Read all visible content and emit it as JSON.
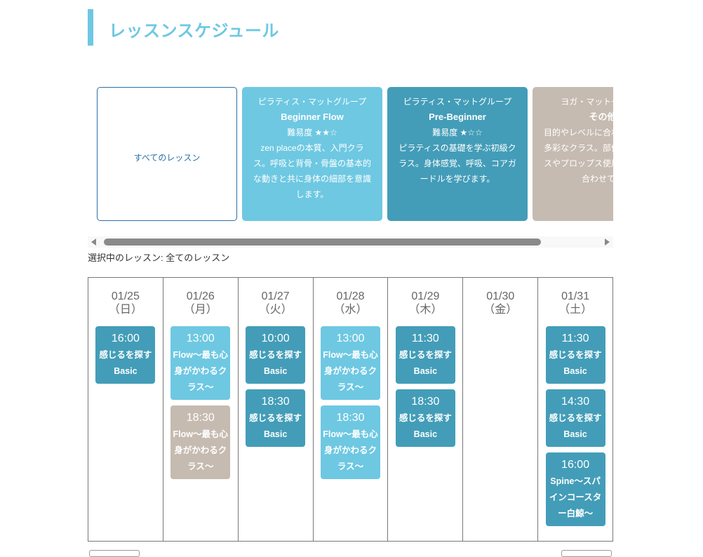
{
  "header": {
    "title": "レッスンスケジュール"
  },
  "colors": {
    "light_blue": "#6ec8e2",
    "teal": "#439db8",
    "beige": "#c6bbb1",
    "accent": "#6ec8e2"
  },
  "lesson_cards": [
    {
      "kind": "all",
      "label": "すべてのレッスン"
    },
    {
      "kind": "light_blue",
      "group": "ピラティス・マットグループ",
      "name": "Beginner Flow",
      "difficulty": "難易度 ★★☆",
      "desc": "zen placeの本質、入門クラス。呼吸と背骨・骨盤の基本的な動きと共に身体の細部を意識します。"
    },
    {
      "kind": "teal",
      "group": "ピラティス・マットグループ",
      "name": "Pre-Beginner",
      "difficulty": "難易度 ★☆☆",
      "desc": "ピラティスの基礎を学ぶ初級クラス。身体感覚、呼吸、コアガードルを学びます。"
    },
    {
      "kind": "beige",
      "group": "ヨガ・マットグループ",
      "name": "その他",
      "difficulty": "",
      "desc": "目的やレベルに合わせて選べる多彩なクラス。部位にフォーカスやプロップス使用など興味に合わせて楽"
    }
  ],
  "selected": {
    "text": "選択中のレッスン: 全てのレッスン"
  },
  "schedule": [
    {
      "date": "01/25",
      "dow": "（日）",
      "events": [
        {
          "time": "16:00",
          "name": "感じるを探すBasic",
          "kind": "teal"
        }
      ]
    },
    {
      "date": "01/26",
      "dow": "（月）",
      "events": [
        {
          "time": "13:00",
          "name": "Flow～最も心身がかわるクラス～",
          "kind": "light_blue"
        },
        {
          "time": "18:30",
          "name": "Flow～最も心身がかわるクラス～",
          "kind": "beige"
        }
      ]
    },
    {
      "date": "01/27",
      "dow": "（火）",
      "events": [
        {
          "time": "10:00",
          "name": "感じるを探すBasic",
          "kind": "teal"
        },
        {
          "time": "18:30",
          "name": "感じるを探すBasic",
          "kind": "teal"
        }
      ]
    },
    {
      "date": "01/28",
      "dow": "（水）",
      "events": [
        {
          "time": "13:00",
          "name": "Flow～最も心身がかわるクラス～",
          "kind": "light_blue"
        },
        {
          "time": "18:30",
          "name": "Flow～最も心身がかわるクラス～",
          "kind": "light_blue"
        }
      ]
    },
    {
      "date": "01/29",
      "dow": "（木）",
      "events": [
        {
          "time": "11:30",
          "name": "感じるを探すBasic",
          "kind": "teal"
        },
        {
          "time": "18:30",
          "name": "感じるを探すBasic",
          "kind": "teal"
        }
      ]
    },
    {
      "date": "01/30",
      "dow": "（金）",
      "events": []
    },
    {
      "date": "01/31",
      "dow": "（土）",
      "events": [
        {
          "time": "11:30",
          "name": "感じるを探すBasic",
          "kind": "teal"
        },
        {
          "time": "14:30",
          "name": "感じるを探すBasic",
          "kind": "teal"
        },
        {
          "time": "16:00",
          "name": "Spine～スパインコースター白鯨～",
          "kind": "teal"
        }
      ]
    }
  ]
}
